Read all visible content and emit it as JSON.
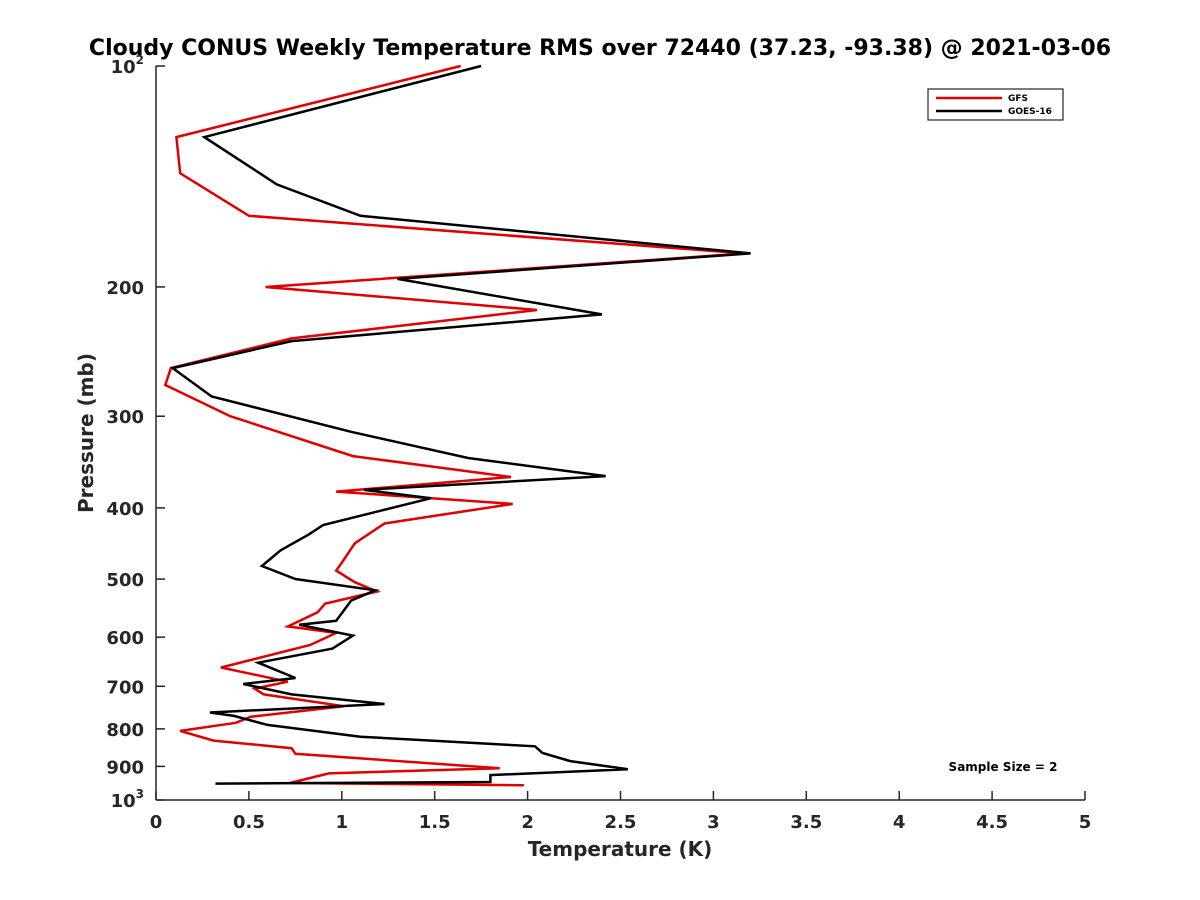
{
  "chart_data": {
    "type": "line",
    "title": "Cloudy CONUS Weekly Temperature RMS over 72440 (37.23, -93.38) @ 2021-03-06",
    "xlabel": "Temperature (K)",
    "ylabel": "Pressure (mb)",
    "xlim": [
      0,
      5
    ],
    "ylim": [
      100,
      1000
    ],
    "y_scale": "log",
    "y_reversed": true,
    "x_ticks": [
      0,
      0.5,
      1,
      1.5,
      2,
      2.5,
      3,
      3.5,
      4,
      4.5,
      5
    ],
    "x_tick_labels": [
      "0",
      "0.5",
      "1",
      "1.5",
      "2",
      "2.5",
      "3",
      "3.5",
      "4",
      "4.5",
      "5"
    ],
    "y_ticks": [
      {
        "value": 100,
        "base": "10",
        "exp": "2"
      },
      {
        "value": 200,
        "base": "200",
        "exp": ""
      },
      {
        "value": 300,
        "base": "300",
        "exp": ""
      },
      {
        "value": 400,
        "base": "400",
        "exp": ""
      },
      {
        "value": 500,
        "base": "500",
        "exp": ""
      },
      {
        "value": 600,
        "base": "600",
        "exp": ""
      },
      {
        "value": 700,
        "base": "700",
        "exp": ""
      },
      {
        "value": 800,
        "base": "800",
        "exp": ""
      },
      {
        "value": 900,
        "base": "900",
        "exp": ""
      },
      {
        "value": 1000,
        "base": "10",
        "exp": "3"
      }
    ],
    "grid": false,
    "legend_position": "top-right",
    "annotation": "Sample Size = 2",
    "series": [
      {
        "name": "GFS",
        "color": "#e00000",
        "points": [
          [
            1.64,
            100
          ],
          [
            0.11,
            125
          ],
          [
            0.13,
            140
          ],
          [
            0.5,
            160
          ],
          [
            3.17,
            180
          ],
          [
            0.59,
            200
          ],
          [
            2.05,
            215
          ],
          [
            0.73,
            235
          ],
          [
            0.08,
            258
          ],
          [
            0.05,
            272
          ],
          [
            0.4,
            300
          ],
          [
            1.06,
            340
          ],
          [
            1.91,
            363
          ],
          [
            0.97,
            380
          ],
          [
            1.92,
            395
          ],
          [
            1.23,
            420
          ],
          [
            1.07,
            447
          ],
          [
            1.0,
            475
          ],
          [
            0.97,
            487
          ],
          [
            1.07,
            505
          ],
          [
            1.19,
            520
          ],
          [
            0.91,
            540
          ],
          [
            0.87,
            555
          ],
          [
            0.71,
            580
          ],
          [
            0.97,
            592
          ],
          [
            0.83,
            615
          ],
          [
            0.35,
            660
          ],
          [
            0.71,
            690
          ],
          [
            0.53,
            705
          ],
          [
            0.58,
            718
          ],
          [
            1.01,
            745
          ],
          [
            0.51,
            770
          ],
          [
            0.43,
            785
          ],
          [
            0.13,
            805
          ],
          [
            0.31,
            830
          ],
          [
            0.73,
            850
          ],
          [
            0.75,
            865
          ],
          [
            1.85,
            905
          ],
          [
            0.93,
            920
          ],
          [
            0.72,
            948
          ],
          [
            1.98,
            955
          ]
        ]
      },
      {
        "name": "GOES-16",
        "color": "#000000",
        "points": [
          [
            1.75,
            100
          ],
          [
            0.26,
            125
          ],
          [
            0.65,
            145
          ],
          [
            1.1,
            160
          ],
          [
            3.2,
            180
          ],
          [
            1.3,
            195
          ],
          [
            2.4,
            218
          ],
          [
            0.73,
            237
          ],
          [
            0.09,
            258
          ],
          [
            0.3,
            282
          ],
          [
            1.05,
            315
          ],
          [
            1.68,
            342
          ],
          [
            2.42,
            362
          ],
          [
            1.12,
            378
          ],
          [
            1.48,
            388
          ],
          [
            0.9,
            422
          ],
          [
            0.82,
            435
          ],
          [
            0.67,
            457
          ],
          [
            0.57,
            480
          ],
          [
            0.75,
            500
          ],
          [
            1.18,
            518
          ],
          [
            1.05,
            535
          ],
          [
            0.97,
            570
          ],
          [
            0.77,
            577
          ],
          [
            1.06,
            597
          ],
          [
            0.95,
            622
          ],
          [
            0.55,
            650
          ],
          [
            0.75,
            682
          ],
          [
            0.47,
            695
          ],
          [
            0.73,
            718
          ],
          [
            1.23,
            740
          ],
          [
            0.29,
            760
          ],
          [
            0.42,
            768
          ],
          [
            0.6,
            790
          ],
          [
            1.1,
            820
          ],
          [
            2.04,
            845
          ],
          [
            2.08,
            863
          ],
          [
            2.23,
            885
          ],
          [
            2.54,
            908
          ],
          [
            1.8,
            925
          ],
          [
            1.8,
            945
          ],
          [
            0.32,
            950
          ]
        ]
      }
    ]
  }
}
